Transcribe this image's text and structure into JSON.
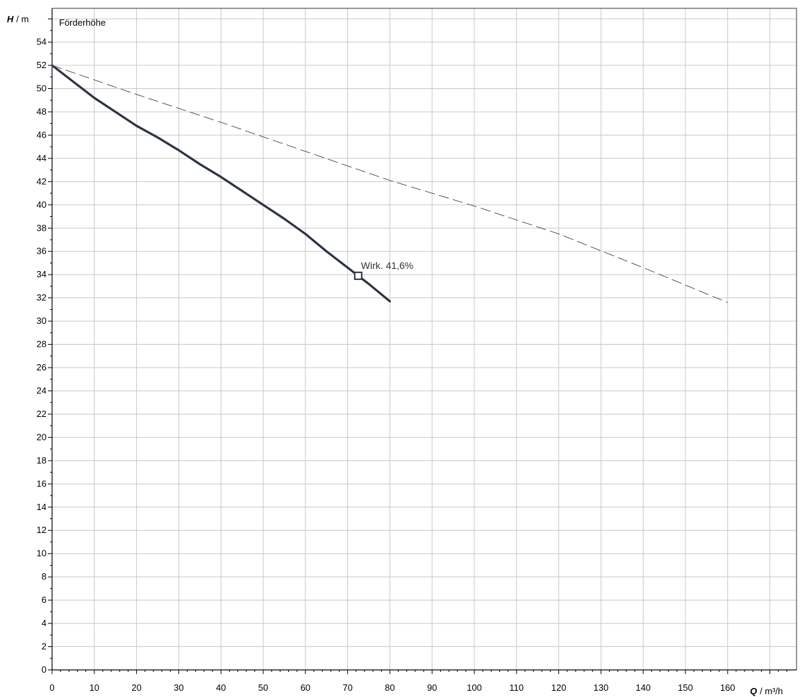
{
  "chart_data": {
    "type": "line",
    "title": "Förderhöhe",
    "y_axis": {
      "symbol": "H",
      "unit": "/ m",
      "range": [
        0,
        56
      ],
      "major_step": 2,
      "minor_step": 1
    },
    "x_axis": {
      "symbol": "Q",
      "unit": "/ m³/h",
      "range": [
        0,
        175
      ],
      "major_step": 10,
      "minor_step": 2
    },
    "grid": true,
    "series": [
      {
        "style": "solid",
        "color": "#2a3344",
        "x": [
          0,
          5,
          10,
          15,
          20,
          25,
          30,
          35,
          40,
          45,
          50,
          55,
          60,
          65,
          70,
          72.5,
          75,
          80
        ],
        "y": [
          52,
          50.6,
          49.2,
          48.0,
          46.8,
          45.8,
          44.7,
          43.5,
          42.4,
          41.2,
          40.0,
          38.8,
          37.5,
          36.0,
          34.6,
          33.9,
          33.2,
          31.7
        ]
      },
      {
        "style": "dashed",
        "color": "#555555",
        "x": [
          0,
          20,
          40,
          60,
          80,
          100,
          120,
          140,
          160
        ],
        "y": [
          52,
          49.5,
          47.1,
          44.6,
          42.1,
          39.9,
          37.5,
          34.6,
          31.6
        ]
      }
    ],
    "operating_point": {
      "x": 72.5,
      "y": 33.9,
      "label": "Wirk.  41,6%"
    }
  }
}
